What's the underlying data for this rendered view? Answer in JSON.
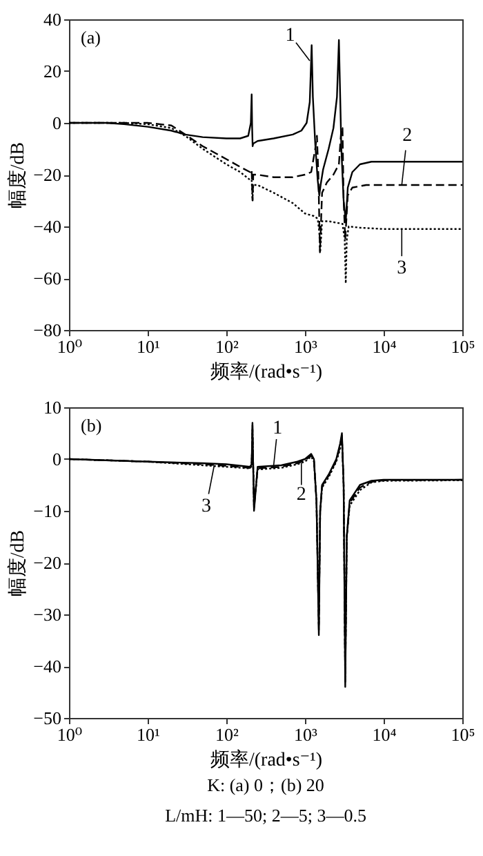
{
  "chart_data": [
    {
      "type": "line",
      "xlabel": "频率/(rad•s⁻¹)",
      "ylabel": "幅度/dB",
      "log": "x",
      "xlim": [
        1,
        100000
      ],
      "ylim": [
        -80,
        40
      ],
      "xticks": [
        {
          "value": 1,
          "label": "10⁰"
        },
        {
          "value": 10,
          "label": "10¹"
        },
        {
          "value": 100,
          "label": "10²"
        },
        {
          "value": 1000,
          "label": "10³"
        },
        {
          "value": 10000,
          "label": "10⁴"
        },
        {
          "value": 100000,
          "label": "10⁵"
        }
      ],
      "yticks": [
        -80,
        -60,
        -40,
        -20,
        0,
        20,
        40
      ],
      "grid": false,
      "series": [
        {
          "color": "#000000",
          "line_style": "solid",
          "x": [
            1,
            3,
            5,
            10,
            20,
            30,
            50,
            100,
            150,
            190,
            205,
            210,
            213,
            216,
            220,
            250,
            400,
            700,
            900,
            1050,
            1150,
            1216,
            1260,
            1350,
            1450,
            1520,
            1580,
            1700,
            2000,
            2300,
            2550,
            2700,
            2780,
            2900,
            3100,
            3300,
            3500,
            4000,
            5000,
            7000,
            10000,
            30000,
            100000
          ],
          "values": [
            0,
            0,
            -0.5,
            -1.5,
            -3,
            -4.5,
            -5.5,
            -6,
            -6,
            -5,
            0,
            11,
            -2,
            -9,
            -8,
            -7,
            -6,
            -4.5,
            -3,
            0,
            8,
            30,
            10,
            -8,
            -22,
            -28,
            -24,
            -18,
            -10,
            -2,
            10,
            32,
            15,
            -10,
            -30,
            -38,
            -25,
            -19,
            -16,
            -15,
            -15,
            -15,
            -15
          ]
        },
        {
          "color": "#000000",
          "line_style": "dashed",
          "x": [
            1,
            5,
            10,
            20,
            30,
            50,
            100,
            150,
            200,
            210,
            213,
            216,
            220,
            250,
            400,
            700,
            1000,
            1200,
            1350,
            1420,
            1480,
            1550,
            1650,
            1900,
            2300,
            2700,
            2900,
            3000,
            3100,
            3250,
            3500,
            4000,
            6000,
            10000,
            100000
          ],
          "values": [
            0,
            0,
            0,
            -1,
            -4.5,
            -9,
            -14,
            -17,
            -19,
            -18,
            -25,
            -30,
            -20,
            -20,
            -21,
            -21,
            -20,
            -19,
            -10,
            -5,
            -20,
            -50,
            -27,
            -23,
            -20,
            -16,
            -2,
            -2,
            -30,
            -45,
            -28,
            -25,
            -24,
            -24,
            -24
          ]
        },
        {
          "color": "#000000",
          "line_style": "dotted",
          "x": [
            1,
            5,
            10,
            20,
            30,
            50,
            100,
            150,
            200,
            210,
            215,
            220,
            250,
            400,
            700,
            1000,
            1300,
            1450,
            1520,
            1560,
            1650,
            2000,
            3000,
            3200,
            3300,
            3400,
            3600,
            5000,
            10000,
            100000
          ],
          "values": [
            0,
            0,
            -0.5,
            -2,
            -5,
            -10,
            -16,
            -19,
            -22,
            -22,
            -30,
            -24,
            -24,
            -27,
            -31,
            -35,
            -36,
            -37,
            -42,
            -50,
            -38,
            -38,
            -39,
            -45,
            -62,
            -45,
            -40,
            -40.5,
            -41,
            -41
          ]
        }
      ],
      "annotations": [
        "(a)",
        {
          "text": "1",
          "x": 1150,
          "y": 24
        },
        {
          "text": "2",
          "x": 17000,
          "y": -24
        },
        {
          "text": "3",
          "x": 17000,
          "y": -41
        }
      ]
    },
    {
      "type": "line",
      "xlabel": "频率/(rad•s⁻¹)",
      "ylabel": "幅度/dB",
      "log": "x",
      "xlim": [
        1,
        100000
      ],
      "ylim": [
        -50,
        10
      ],
      "xticks": [
        {
          "value": 1,
          "label": "10⁰"
        },
        {
          "value": 10,
          "label": "10¹"
        },
        {
          "value": 100,
          "label": "10²"
        },
        {
          "value": 1000,
          "label": "10³"
        },
        {
          "value": 10000,
          "label": "10⁴"
        },
        {
          "value": 100000,
          "label": "10⁵"
        }
      ],
      "yticks": [
        -50,
        -40,
        -30,
        -20,
        -10,
        0,
        10
      ],
      "grid": false,
      "series": [
        {
          "color": "#000000",
          "line_style": "solid",
          "x": [
            1,
            10,
            50,
            100,
            200,
            210,
            215,
            220,
            225,
            250,
            500,
            800,
            1000,
            1200,
            1300,
            1400,
            1500,
            1560,
            1650,
            2000,
            2500,
            2800,
            2950,
            3100,
            3250,
            3400,
            3700,
            5000,
            7000,
            10000,
            100000
          ],
          "values": [
            0,
            -0.5,
            -0.8,
            -1,
            -1.5,
            -1,
            7,
            -2,
            -10,
            -1.5,
            -1.2,
            -0.5,
            0,
            1,
            0,
            -8,
            -34,
            -10,
            -5,
            -3,
            0,
            3,
            5,
            -5,
            -44,
            -15,
            -8,
            -5,
            -4.2,
            -4,
            -4
          ]
        },
        {
          "color": "#000000",
          "line_style": "dashed",
          "x": [
            1,
            10,
            50,
            100,
            200,
            210,
            215,
            220,
            225,
            250,
            500,
            800,
            1000,
            1200,
            1300,
            1400,
            1500,
            1560,
            1650,
            2000,
            2500,
            2800,
            2950,
            3100,
            3250,
            3400,
            3700,
            5000,
            7000,
            10000,
            100000
          ],
          "values": [
            0,
            -0.5,
            -1,
            -1.3,
            -1.7,
            -1.2,
            6.5,
            -2,
            -9.5,
            -1.8,
            -1.5,
            -0.8,
            -0.3,
            0.8,
            -0.2,
            -8,
            -33,
            -10,
            -5.2,
            -3.2,
            -0.3,
            2.5,
            4.5,
            -5,
            -43,
            -15,
            -8.5,
            -5.5,
            -4.4,
            -4.1,
            -4
          ]
        },
        {
          "color": "#000000",
          "line_style": "dotted",
          "x": [
            1,
            10,
            50,
            100,
            200,
            210,
            215,
            220,
            225,
            250,
            500,
            800,
            1000,
            1200,
            1300,
            1400,
            1500,
            1560,
            1650,
            2000,
            2500,
            2800,
            2950,
            3100,
            3250,
            3400,
            3700,
            5000,
            7000,
            10000,
            100000
          ],
          "values": [
            0,
            -0.5,
            -1.2,
            -1.5,
            -1.8,
            -1.3,
            6,
            -2.2,
            -9,
            -2,
            -1.7,
            -1,
            -0.5,
            0.5,
            -0.5,
            -8,
            -32,
            -10,
            -5.5,
            -3.5,
            -0.5,
            2,
            4,
            -5,
            -42,
            -15,
            -9,
            -6,
            -4.5,
            -4.2,
            -4.1
          ]
        }
      ],
      "annotations": [
        "(b)",
        {
          "text": "1",
          "x": 400,
          "y": -1.2
        },
        {
          "text": "2",
          "x": 900,
          "y": -0.8
        },
        {
          "text": "3",
          "x": 70,
          "y": -1.3
        },
        "K: (a) 0；(b) 20",
        "L/mH: 1—50; 2—5; 3—0.5"
      ]
    }
  ]
}
